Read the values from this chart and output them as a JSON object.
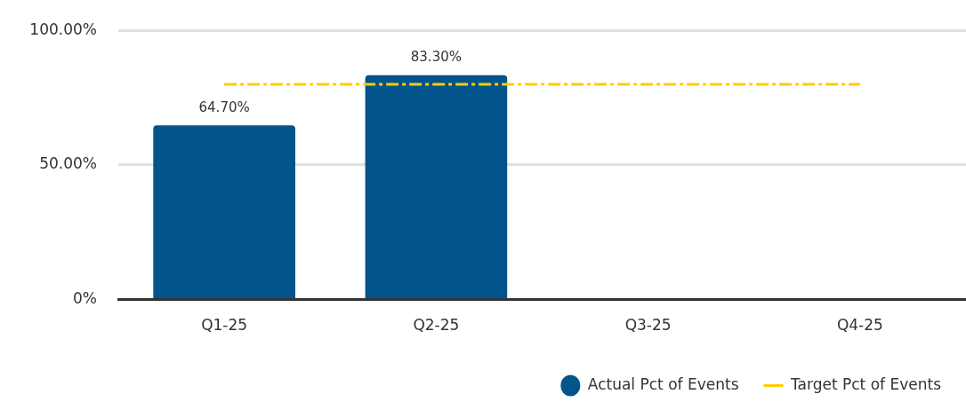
{
  "chart_data": {
    "type": "bar",
    "categories": [
      "Q1-25",
      "Q2-25",
      "Q3-25",
      "Q4-25"
    ],
    "series": [
      {
        "name": "Actual Pct of Events",
        "color": "#02548a",
        "values": [
          64.7,
          83.3,
          null,
          null
        ],
        "value_labels": [
          "64.70%",
          "83.30%",
          null,
          null
        ]
      },
      {
        "name": "Target Pct of Events",
        "type": "line",
        "color": "#ffcc00",
        "values": [
          80,
          80,
          80,
          80
        ],
        "line_style": "dashed",
        "marker": "none"
      }
    ],
    "ylim": [
      0,
      100
    ],
    "yticks": [
      {
        "value": 0,
        "label": "0%"
      },
      {
        "value": 50,
        "label": "50.00%"
      },
      {
        "value": 100,
        "label": "100.00%"
      }
    ],
    "grid": "y",
    "legend": "bottom right"
  }
}
